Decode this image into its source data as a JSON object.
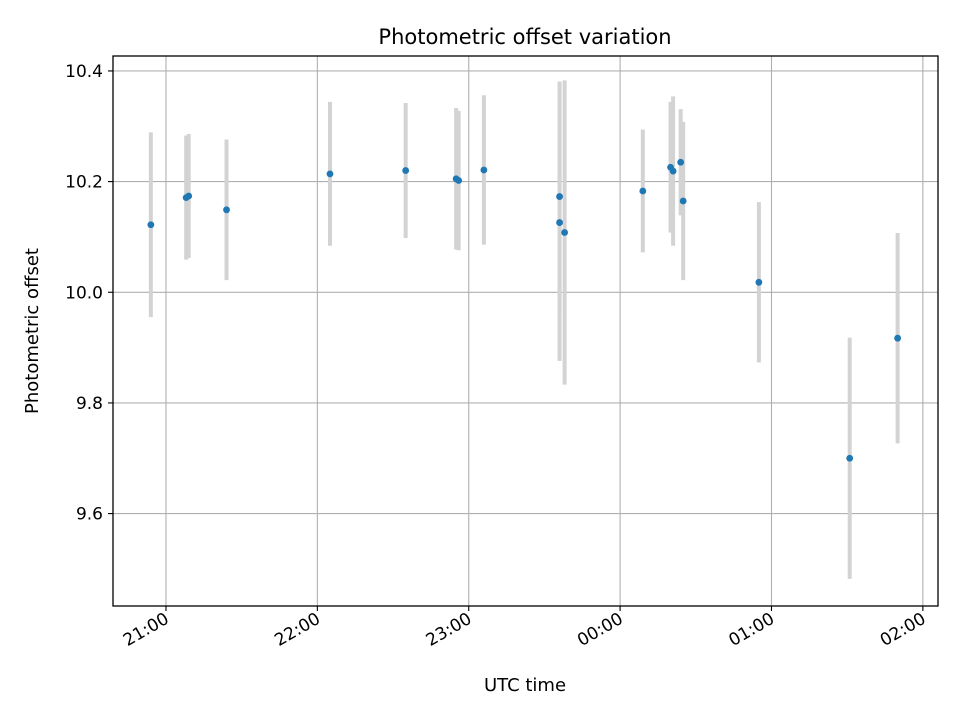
{
  "chart_data": {
    "type": "scatter",
    "title": "Photometric offset variation",
    "xlabel": "UTC time",
    "ylabel": "Photometric offset",
    "x_is_time": true,
    "xlim": [
      "20:39",
      "02:06"
    ],
    "ylim": [
      9.433,
      10.427
    ],
    "xticks": [
      "21:00",
      "22:00",
      "23:00",
      "00:00",
      "01:00",
      "02:00"
    ],
    "yticks": [
      9.6,
      9.8,
      10.0,
      10.2,
      10.4
    ],
    "ytick_labels": [
      "9.6",
      "9.8",
      "10.0",
      "10.2",
      "10.4"
    ],
    "grid": true,
    "point_color": "#1f77b4",
    "errorbar_color": "#d3d3d3",
    "series": [
      {
        "points": [
          {
            "x": "20:54",
            "y": 10.122,
            "err": 0.167
          },
          {
            "x": "21:08",
            "y": 10.171,
            "err": 0.112
          },
          {
            "x": "21:09",
            "y": 10.174,
            "err": 0.112
          },
          {
            "x": "21:24",
            "y": 10.149,
            "err": 0.127
          },
          {
            "x": "22:05",
            "y": 10.214,
            "err": 0.13
          },
          {
            "x": "22:35",
            "y": 10.22,
            "err": 0.122
          },
          {
            "x": "22:55",
            "y": 10.205,
            "err": 0.128
          },
          {
            "x": "22:56",
            "y": 10.202,
            "err": 0.126
          },
          {
            "x": "23:06",
            "y": 10.221,
            "err": 0.135
          },
          {
            "x": "23:36",
            "y": 10.173,
            "err": 0.208
          },
          {
            "x": "23:36",
            "y": 10.126,
            "err": 0.25
          },
          {
            "x": "23:38",
            "y": 10.108,
            "err": 0.275
          },
          {
            "x": "00:09",
            "y": 10.183,
            "err": 0.111
          },
          {
            "x": "00:20",
            "y": 10.226,
            "err": 0.118
          },
          {
            "x": "00:21",
            "y": 10.219,
            "err": 0.135
          },
          {
            "x": "00:24",
            "y": 10.235,
            "err": 0.096
          },
          {
            "x": "00:25",
            "y": 10.165,
            "err": 0.143
          },
          {
            "x": "00:55",
            "y": 10.018,
            "err": 0.145
          },
          {
            "x": "01:31",
            "y": 9.7,
            "err": 0.218
          },
          {
            "x": "01:50",
            "y": 9.917,
            "err": 0.19
          }
        ]
      }
    ]
  }
}
